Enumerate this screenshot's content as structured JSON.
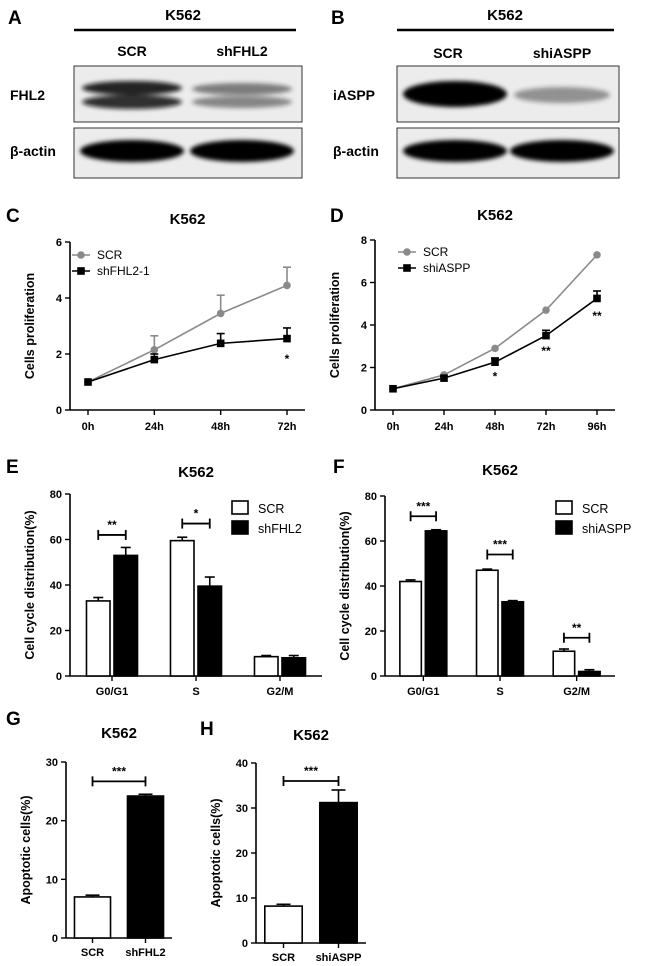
{
  "panels": {
    "A": {
      "letter": "A",
      "cell_line": "K562",
      "lanes": [
        "SCR",
        "shFHL2"
      ],
      "rows": [
        {
          "label": "FHL2",
          "intensity": [
            0.95,
            0.55
          ]
        },
        {
          "label": "β-actin",
          "intensity": [
            1.0,
            1.0
          ]
        }
      ]
    },
    "B": {
      "letter": "B",
      "cell_line": "K562",
      "lanes": [
        "SCR",
        "shiASPP"
      ],
      "rows": [
        {
          "label": "iASPP",
          "intensity": [
            1.0,
            0.45
          ]
        },
        {
          "label": "β-actin",
          "intensity": [
            1.0,
            1.0
          ]
        }
      ]
    }
  },
  "chart_data": [
    {
      "id": "C",
      "letter": "C",
      "type": "line",
      "title": "K562",
      "xlabel": "",
      "ylabel": "Cells proliferation",
      "categories": [
        "0h",
        "24h",
        "48h",
        "72h"
      ],
      "ylim": [
        0,
        6
      ],
      "yticks": [
        0,
        2,
        4,
        6
      ],
      "legend": "top-left",
      "series": [
        {
          "name": "SCR",
          "color": "#8a8a8a",
          "marker": "circle",
          "values": [
            1.0,
            2.15,
            3.45,
            4.45
          ],
          "err": [
            0,
            0.5,
            0.65,
            0.65
          ]
        },
        {
          "name": "shFHL2-1",
          "color": "#000000",
          "marker": "square",
          "values": [
            1.0,
            1.8,
            2.38,
            2.55
          ],
          "err": [
            0,
            0.2,
            0.35,
            0.38
          ]
        }
      ],
      "annotations": [
        {
          "at": 3,
          "text": "*"
        }
      ]
    },
    {
      "id": "D",
      "letter": "D",
      "type": "line",
      "title": "K562",
      "xlabel": "",
      "ylabel": "Cells proliferation",
      "categories": [
        "0h",
        "24h",
        "48h",
        "72h",
        "96h"
      ],
      "ylim": [
        0,
        8
      ],
      "yticks": [
        0,
        2,
        4,
        6,
        8
      ],
      "legend": "top-left",
      "series": [
        {
          "name": "SCR",
          "color": "#8a8a8a",
          "marker": "circle",
          "values": [
            1.0,
            1.65,
            2.9,
            4.7,
            7.3
          ],
          "err": [
            0,
            0,
            0,
            0,
            0
          ]
        },
        {
          "name": "shiASPP",
          "color": "#000000",
          "marker": "square",
          "values": [
            1.0,
            1.5,
            2.25,
            3.5,
            5.25
          ],
          "err": [
            0,
            0.08,
            0.2,
            0.25,
            0.35
          ]
        }
      ],
      "annotations": [
        {
          "at": 2,
          "text": "*"
        },
        {
          "at": 3,
          "text": "**"
        },
        {
          "at": 4,
          "text": "**"
        }
      ]
    },
    {
      "id": "E",
      "letter": "E",
      "type": "bar",
      "title": "K562",
      "xlabel": "",
      "ylabel": "Cell cycle distribution(%)",
      "categories": [
        "G0/G1",
        "S",
        "G2/M"
      ],
      "ylim": [
        0,
        80
      ],
      "yticks": [
        0,
        20,
        40,
        60,
        80
      ],
      "legend": "top-right",
      "series": [
        {
          "name": "SCR",
          "fill": "#ffffff",
          "values": [
            33,
            59.5,
            8.5
          ],
          "err": [
            1.5,
            1.5,
            0.5
          ]
        },
        {
          "name": "shFHL2",
          "fill": "#000000",
          "values": [
            53,
            39.5,
            8
          ],
          "err": [
            3.5,
            4,
            1
          ]
        }
      ],
      "sig": [
        {
          "cat": 0,
          "text": "**",
          "y": 62
        },
        {
          "cat": 1,
          "text": "*",
          "y": 67
        }
      ]
    },
    {
      "id": "F",
      "letter": "F",
      "type": "bar",
      "title": "K562",
      "xlabel": "",
      "ylabel": "Cell cycle distribution(%)",
      "categories": [
        "G0/G1",
        "S",
        "G2/M"
      ],
      "ylim": [
        0,
        80
      ],
      "yticks": [
        0,
        20,
        40,
        60,
        80
      ],
      "legend": "top-right",
      "series": [
        {
          "name": "SCR",
          "fill": "#ffffff",
          "values": [
            42,
            47,
            11
          ],
          "err": [
            0.7,
            0.5,
            1
          ]
        },
        {
          "name": "shiASPP",
          "fill": "#000000",
          "values": [
            64.5,
            33,
            2
          ],
          "err": [
            0.5,
            0.5,
            0.8
          ]
        }
      ],
      "sig": [
        {
          "cat": 0,
          "text": "***",
          "y": 71
        },
        {
          "cat": 1,
          "text": "***",
          "y": 54
        },
        {
          "cat": 2,
          "text": "**",
          "y": 17
        }
      ]
    },
    {
      "id": "G",
      "letter": "G",
      "type": "bar",
      "title": "K562",
      "xlabel": "",
      "ylabel": "Apoptotic cells(%)",
      "categories": [
        "SCR",
        "shFHL2"
      ],
      "ylim": [
        0,
        30
      ],
      "yticks": [
        0,
        10,
        20,
        30
      ],
      "legend": "none",
      "values": [
        7,
        24.2
      ],
      "err": [
        0.3,
        0.3
      ],
      "fills": [
        "#ffffff",
        "#000000"
      ],
      "sig": {
        "text": "***",
        "y": 26.7
      }
    },
    {
      "id": "H",
      "letter": "H",
      "type": "bar",
      "title": "K562",
      "xlabel": "",
      "ylabel": "Apoptotic cells(%)",
      "categories": [
        "SCR",
        "shiASPP"
      ],
      "ylim": [
        0,
        40
      ],
      "yticks": [
        0,
        10,
        20,
        30,
        40
      ],
      "legend": "none",
      "values": [
        8.2,
        31.2
      ],
      "err": [
        0.4,
        2.8
      ],
      "fills": [
        "#ffffff",
        "#000000"
      ],
      "sig": {
        "text": "***",
        "y": 36
      }
    }
  ]
}
